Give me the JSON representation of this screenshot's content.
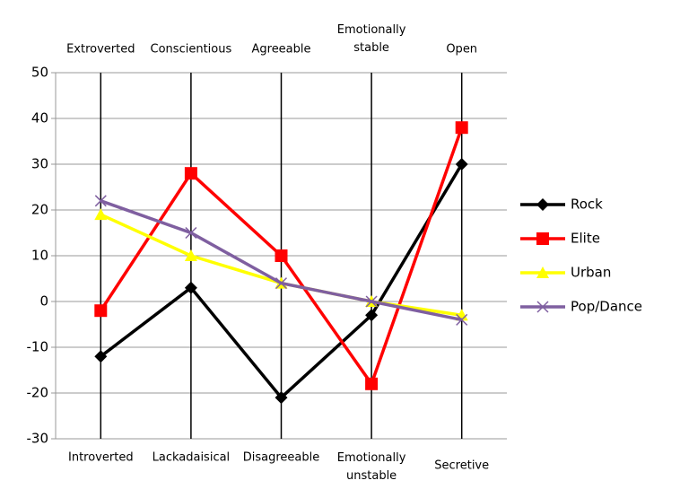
{
  "chart_data": {
    "type": "line",
    "top_labels": [
      "Extroverted",
      "Conscientious",
      "Agreeable",
      "Emotionally stable",
      "Open"
    ],
    "categories": [
      "Introverted",
      "Lackadaisical",
      "Disagreeable",
      "Emotionally unstable",
      "Secretive"
    ],
    "series": [
      {
        "name": "Rock",
        "color": "#000000",
        "marker": "diamond",
        "values": [
          -12,
          3,
          -21,
          -3,
          30
        ]
      },
      {
        "name": "Elite",
        "color": "#ff0000",
        "marker": "square",
        "values": [
          -2,
          28,
          10,
          -18,
          38
        ]
      },
      {
        "name": "Urban",
        "color": "#ffff00",
        "marker": "triangle",
        "values": [
          19,
          10,
          4,
          0,
          -3
        ]
      },
      {
        "name": "Pop/Dance",
        "color": "#7f5fa0",
        "marker": "x",
        "values": [
          22,
          15,
          4,
          0,
          -4
        ]
      }
    ],
    "ylim": [
      -30,
      50
    ],
    "yticks": [
      -30,
      -20,
      -10,
      0,
      10,
      20,
      30,
      40,
      50
    ],
    "grid": true,
    "legend": "right"
  }
}
